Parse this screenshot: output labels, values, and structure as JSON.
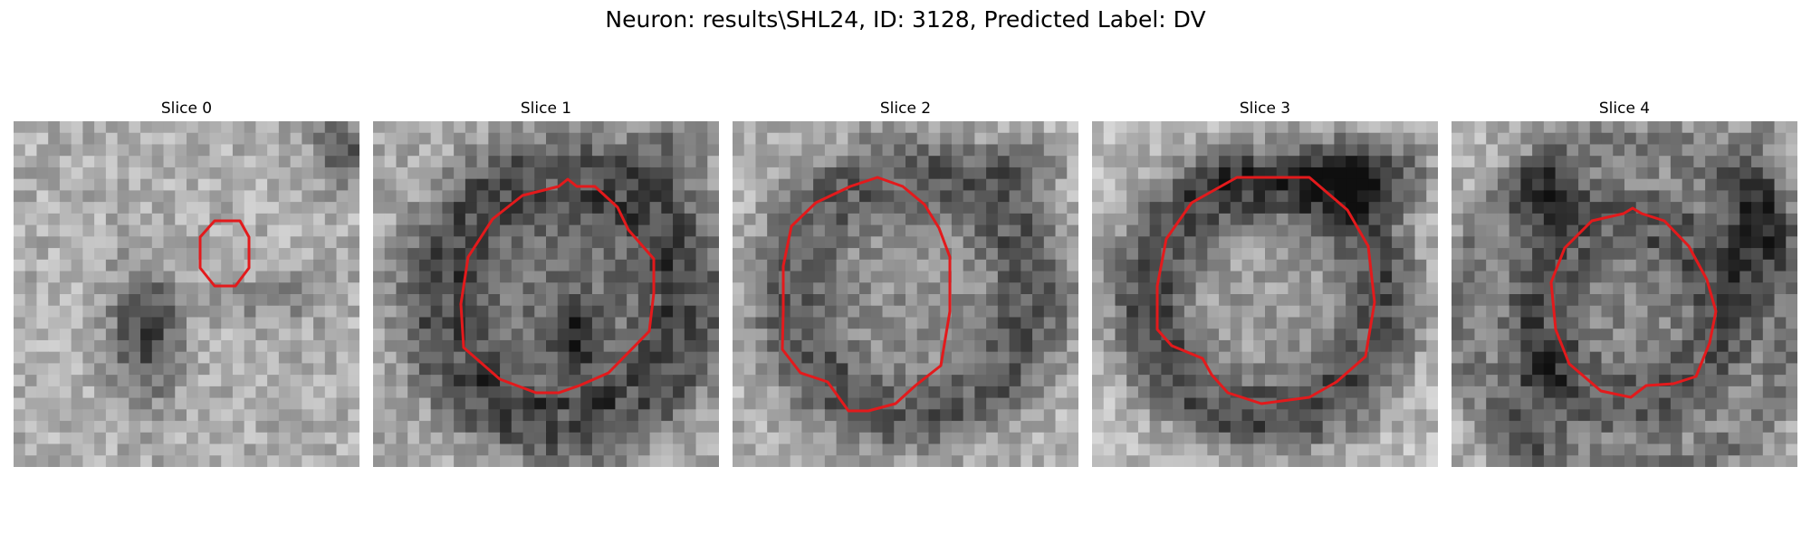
{
  "figure": {
    "title": "Neuron: results\\SHL24, ID: 3128, Predicted Label: DV",
    "contour_color": "#e31a1c"
  },
  "panels": [
    {
      "title": "Slice 0",
      "image_description": "grayscale microscopy patch with small red contour"
    },
    {
      "title": "Slice 1",
      "image_description": "grayscale microscopy patch with red contour around dark round cell"
    },
    {
      "title": "Slice 2",
      "image_description": "grayscale microscopy patch with red contour around round cell"
    },
    {
      "title": "Slice 3",
      "image_description": "grayscale microscopy patch with red contour around round cell"
    },
    {
      "title": "Slice 4",
      "image_description": "grayscale microscopy patch with red contour around round cell"
    }
  ]
}
